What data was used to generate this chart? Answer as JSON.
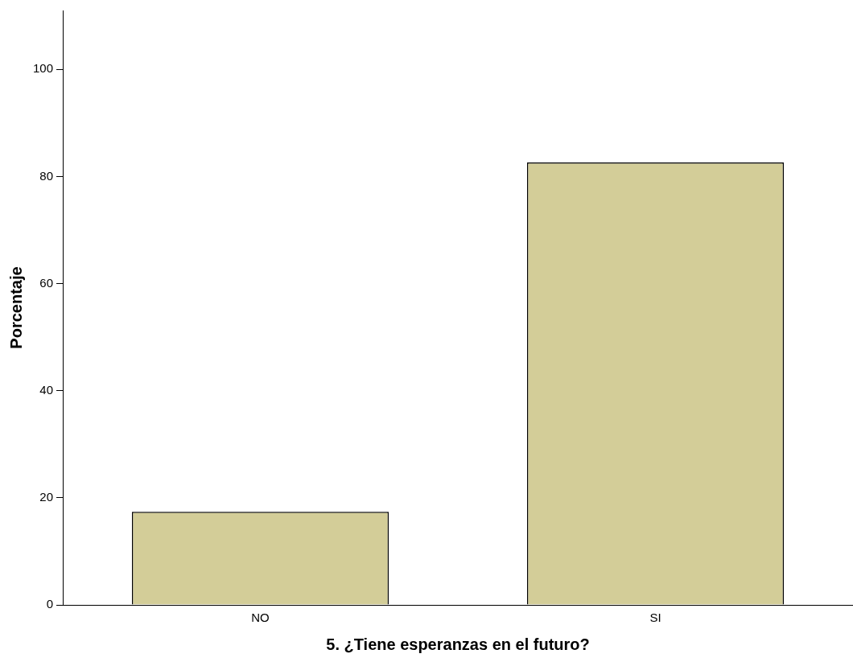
{
  "chart_data": {
    "type": "bar",
    "xlabel": "5. ¿Tiene esperanzas en el futuro?",
    "ylabel": "Porcentaje",
    "categories": [
      "NO",
      "SI"
    ],
    "values": [
      17.4,
      82.6
    ],
    "color": "#d3cd98",
    "ylim": [
      0,
      111
    ],
    "yticks": [
      0,
      20,
      40,
      60,
      80,
      100
    ],
    "grid": false,
    "legend": false
  }
}
